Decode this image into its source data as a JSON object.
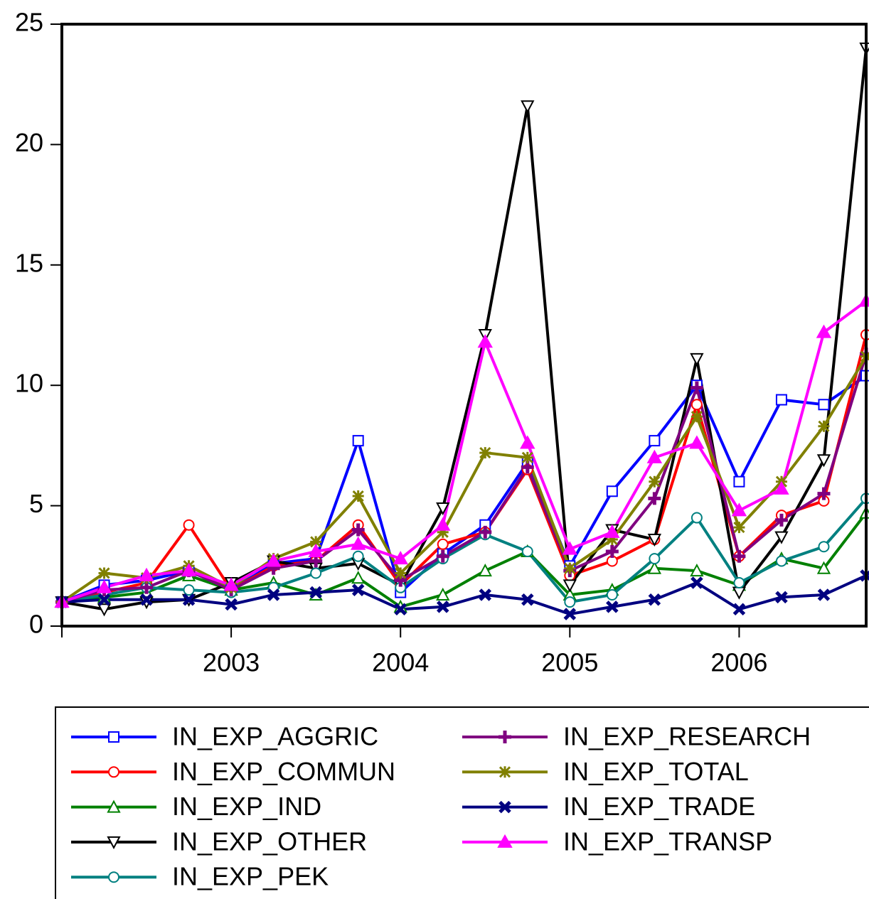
{
  "chart_data": {
    "type": "line",
    "categories": [
      null,
      null,
      null,
      null,
      "2003",
      null,
      null,
      null,
      "2004",
      null,
      null,
      null,
      "2005",
      null,
      null,
      null,
      "2006",
      null,
      null,
      null
    ],
    "ylim": [
      0,
      25
    ],
    "yticks": [
      0,
      5,
      10,
      15,
      20,
      25
    ],
    "series": [
      {
        "name": "IN_EXP_AGGRIC",
        "color": "#0000ff",
        "marker": "square",
        "values": [
          1.0,
          1.7,
          1.9,
          2.3,
          1.5,
          2.6,
          2.8,
          7.7,
          1.4,
          3.0,
          4.2,
          6.8,
          2.5,
          5.6,
          7.7,
          10.0,
          6.0,
          9.4,
          9.2,
          10.4
        ]
      },
      {
        "name": "IN_EXP_COMMUN",
        "color": "#ff0000",
        "marker": "circle",
        "values": [
          1.0,
          1.4,
          1.8,
          4.2,
          1.5,
          2.5,
          2.7,
          4.2,
          1.7,
          3.4,
          3.9,
          6.5,
          2.1,
          2.7,
          3.6,
          9.2,
          2.9,
          4.6,
          5.2,
          12.1
        ]
      },
      {
        "name": "IN_EXP_IND",
        "color": "#008000",
        "marker": "triangle",
        "values": [
          1.0,
          1.2,
          1.4,
          2.1,
          1.5,
          1.8,
          1.3,
          2.0,
          0.8,
          1.3,
          2.3,
          3.1,
          1.3,
          1.5,
          2.4,
          2.3,
          1.7,
          2.8,
          2.4,
          4.7
        ]
      },
      {
        "name": "IN_EXP_OTHER",
        "color": "#000000",
        "marker": "triangle-down",
        "values": [
          1.0,
          0.7,
          1.0,
          1.1,
          1.8,
          2.7,
          2.4,
          2.6,
          1.7,
          4.9,
          12.1,
          21.6,
          1.7,
          4.0,
          3.6,
          11.1,
          1.4,
          3.7,
          6.9,
          24.0
        ]
      },
      {
        "name": "IN_EXP_PEK",
        "color": "#008080",
        "marker": "circle",
        "values": [
          1.0,
          1.3,
          1.6,
          1.5,
          1.4,
          1.6,
          2.2,
          2.9,
          1.6,
          2.8,
          3.8,
          3.1,
          1.0,
          1.3,
          2.8,
          4.5,
          1.8,
          2.7,
          3.3,
          5.3
        ]
      },
      {
        "name": "IN_EXP_RESEARCH",
        "color": "#800080",
        "marker": "plus",
        "values": [
          1.0,
          1.5,
          1.6,
          2.3,
          1.5,
          2.4,
          2.7,
          4.0,
          1.9,
          2.9,
          3.9,
          6.6,
          2.3,
          3.1,
          5.3,
          9.9,
          2.9,
          4.4,
          5.5,
          11.3
        ]
      },
      {
        "name": "IN_EXP_TOTAL",
        "color": "#808000",
        "marker": "star",
        "values": [
          1.0,
          2.2,
          2.0,
          2.5,
          1.6,
          2.8,
          3.5,
          5.4,
          2.2,
          3.9,
          7.2,
          7.0,
          2.4,
          3.6,
          6.0,
          8.7,
          4.1,
          6.0,
          8.3,
          11.2
        ]
      },
      {
        "name": "IN_EXP_TRADE",
        "color": "#000080",
        "marker": "x",
        "values": [
          1.0,
          1.1,
          1.1,
          1.1,
          0.9,
          1.3,
          1.4,
          1.5,
          0.7,
          0.8,
          1.3,
          1.1,
          0.5,
          0.8,
          1.1,
          1.8,
          0.7,
          1.2,
          1.3,
          2.1
        ]
      },
      {
        "name": "IN_EXP_TRANSP",
        "color": "#ff00ff",
        "marker": "triangle-filled",
        "values": [
          1.0,
          1.6,
          2.1,
          2.3,
          1.7,
          2.7,
          3.1,
          3.4,
          2.8,
          4.2,
          11.8,
          7.6,
          3.2,
          3.9,
          7.0,
          7.6,
          4.8,
          5.7,
          12.2,
          13.5
        ]
      }
    ]
  }
}
